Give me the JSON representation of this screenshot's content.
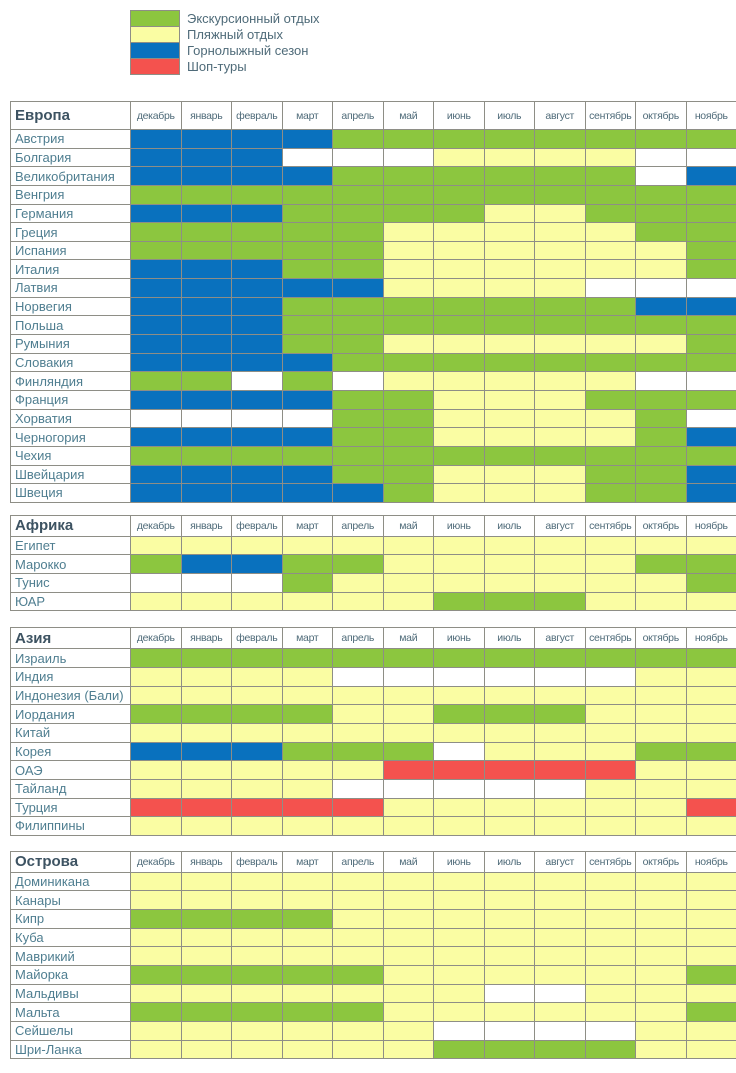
{
  "chart_data": {
    "type": "heatmap",
    "legend_position": "top",
    "palette": {
      "G": "#8CC63F",
      "Y": "#FAFDA3",
      "B": "#0971BE",
      "R": "#F4524E",
      "W": "#FFFFFF"
    },
    "legend": [
      {
        "key": "G",
        "label": "Экскурсионный отдых"
      },
      {
        "key": "Y",
        "label": "Пляжный отдых"
      },
      {
        "key": "B",
        "label": "Горнолыжный сезон"
      },
      {
        "key": "R",
        "label": "Шоп-туры"
      }
    ],
    "categories": [
      "декабрь",
      "январь",
      "февраль",
      "март",
      "апрель",
      "май",
      "июнь",
      "июль",
      "август",
      "сентябрь",
      "октябрь",
      "ноябрь"
    ],
    "sections": [
      {
        "id": "europe",
        "title": "Европа",
        "rows": [
          {
            "name": "Австрия",
            "cells": "BBBBGGGGGGGG"
          },
          {
            "name": "Болгария",
            "cells": "BBBWWWYYYYWW"
          },
          {
            "name": "Великобритания",
            "cells": "BBBBGGGGGGWB"
          },
          {
            "name": "Венгрия",
            "cells": "GGGGGGGGGGGG"
          },
          {
            "name": "Германия",
            "cells": "BBBGGGGYYGGG"
          },
          {
            "name": "Греция",
            "cells": "GGGGGYYYYYGG"
          },
          {
            "name": "Испания",
            "cells": "GGGGGYYYYYYG"
          },
          {
            "name": "Италия",
            "cells": "BBBGGYYYYYYG"
          },
          {
            "name": "Латвия",
            "cells": "BBBBBYYYYWWW"
          },
          {
            "name": "Норвегия",
            "cells": "BBBGGGGGGGBB"
          },
          {
            "name": "Польша",
            "cells": "BBBGGGGGGGGG"
          },
          {
            "name": "Румыния",
            "cells": "BBBGGYYYYYYG"
          },
          {
            "name": "Словакия",
            "cells": "BBBBGGGGGGGG"
          },
          {
            "name": "Финляндия",
            "cells": "GGWGWYYYYYWW"
          },
          {
            "name": "Франция",
            "cells": "BBBBGGYYYGGG"
          },
          {
            "name": "Хорватия",
            "cells": "WWWWGGYYYYGW"
          },
          {
            "name": "Черногория",
            "cells": "BBBBGGYYYYGB"
          },
          {
            "name": "Чехия",
            "cells": "GGGGGGGGGGGG"
          },
          {
            "name": "Швейцария",
            "cells": "BBBBGGYYYGGB"
          },
          {
            "name": "Швеция",
            "cells": "BBBBBGYYYGGB"
          }
        ]
      },
      {
        "id": "africa",
        "title": "Африка",
        "rows": [
          {
            "name": "Египет",
            "cells": "YYYYYYYYYYYY"
          },
          {
            "name": "Марокко",
            "cells": "GBBGGYYYYYGG"
          },
          {
            "name": "Тунис",
            "cells": "WWWGYYYYYYYG"
          },
          {
            "name": "ЮАР",
            "cells": "YYYYYYGGGYYY"
          }
        ]
      },
      {
        "id": "asia",
        "title": "Азия",
        "rows": [
          {
            "name": "Израиль",
            "cells": "GGGGGGGGGGGG"
          },
          {
            "name": "Индия",
            "cells": "YYYYWWWWWWYY"
          },
          {
            "name": "Индонезия (Бали)",
            "cells": "YYYYYYYYYYYY"
          },
          {
            "name": "Иордания",
            "cells": "GGGGYYGGGYYY"
          },
          {
            "name": "Китай",
            "cells": "YYYYYYYYYYYY"
          },
          {
            "name": "Корея",
            "cells": "BBBGGGWYYYGG"
          },
          {
            "name": "ОАЭ",
            "cells": "YYYYYRRRRRYY"
          },
          {
            "name": "Тайланд",
            "cells": "YYYYWWWWWYYY"
          },
          {
            "name": "Турция",
            "cells": "RRRRRYYYYYYR"
          },
          {
            "name": "Филиппины",
            "cells": "YYYYYYYYYYYY"
          }
        ]
      },
      {
        "id": "islands",
        "title": "Острова",
        "rows": [
          {
            "name": "Доминикана",
            "cells": "YYYYYYYYYYYY"
          },
          {
            "name": "Канары",
            "cells": "YYYYYYYYYYYY"
          },
          {
            "name": "Кипр",
            "cells": "GGGGYYYYYYYY"
          },
          {
            "name": "Куба",
            "cells": "YYYYYYYYYYYY"
          },
          {
            "name": "Маврикий",
            "cells": "YYYYYYYYYYYY"
          },
          {
            "name": "Майорка",
            "cells": "GGGGGYYYYYYG"
          },
          {
            "name": "Мальдивы",
            "cells": "YYYYYYYWWYYY"
          },
          {
            "name": "Мальта",
            "cells": "GGGGGYYYYYYG"
          },
          {
            "name": "Сейшелы",
            "cells": "YYYYYYWWWWYY"
          },
          {
            "name": "Шри-Ланка",
            "cells": "YYYYYYGGGGYY"
          }
        ]
      }
    ]
  }
}
